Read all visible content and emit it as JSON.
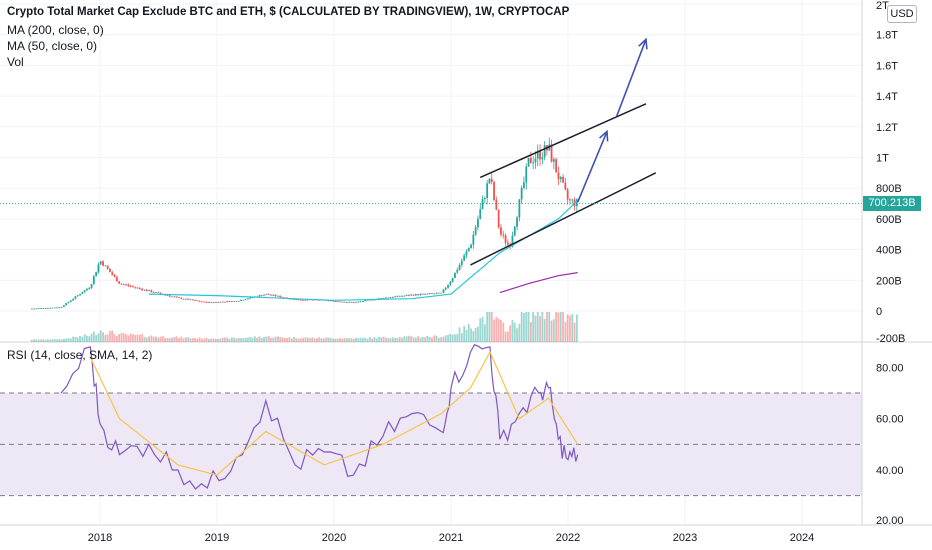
{
  "header": {
    "title": "Crypto Total Market Cap Exclude BTC and ETH, $ (CALCULATED BY TRADINGVIEW), 1W, CRYPTOCAP",
    "ma200": "MA (200, close, 0)",
    "ma50": "MA (50, close, 0)",
    "vol": "Vol"
  },
  "currency_badge": "USD",
  "price_tag": "700.213B",
  "rsi_label": "RSI (14, close, SMA, 14, 2)",
  "colors": {
    "up": "#26a69a",
    "down": "#ef5350",
    "ma50": "#26c6da",
    "ma200": "#9c27b0",
    "rsi": "#7e57c2",
    "rsi_ma": "#f7c548",
    "drawings": "#1c1f2e",
    "arrows": "#3f51b5",
    "rsi_band": "#ede7f6",
    "price_tag": "#26a69a"
  },
  "chart_data": [
    {
      "type": "line",
      "subtype": "candlestick",
      "title": "Crypto Total Market Cap Exclude BTC and ETH, $ (CALCULATED BY TRADINGVIEW), 1W, CRYPTOCAP",
      "y_unit": "USD",
      "y_ticks": [
        "2T",
        "1.8T",
        "1.6T",
        "1.4T",
        "1.2T",
        "1T",
        "800B",
        "600B",
        "400B",
        "200B",
        "0",
        "-200B"
      ],
      "ylim": [
        -200,
        2000
      ],
      "x_ticks": [
        "2018",
        "2019",
        "2020",
        "2021",
        "2022",
        "2023",
        "2024"
      ],
      "last_value": "700.213B",
      "series": [
        {
          "name": "CRYPTOCAP",
          "x": [
            "2017-06",
            "2017-09",
            "2017-12",
            "2018-01",
            "2018-03",
            "2018-06",
            "2018-09",
            "2018-12",
            "2019-03",
            "2019-06",
            "2019-09",
            "2019-12",
            "2020-03",
            "2020-06",
            "2020-09",
            "2020-12",
            "2021-01",
            "2021-03",
            "2021-05",
            "2021-06",
            "2021-07",
            "2021-09",
            "2021-11",
            "2021-12",
            "2022-01",
            "2022-02"
          ],
          "values": [
            15,
            25,
            160,
            330,
            180,
            130,
            85,
            55,
            65,
            110,
            75,
            70,
            55,
            85,
            105,
            115,
            200,
            430,
            880,
            510,
            420,
            980,
            1060,
            880,
            720,
            700
          ]
        },
        {
          "name": "MA (50, close, 0)",
          "x": [
            "2018-06",
            "2019-01",
            "2020-01",
            "2020-09",
            "2021-01",
            "2021-06",
            "2021-12",
            "2022-02"
          ],
          "values": [
            110,
            100,
            70,
            80,
            110,
            380,
            600,
            720
          ]
        },
        {
          "name": "MA (200, close, 0)",
          "x": [
            "2021-06",
            "2021-09",
            "2021-12",
            "2022-02"
          ],
          "values": [
            120,
            180,
            230,
            250
          ]
        }
      ]
    },
    {
      "type": "line",
      "title": "RSI (14, close, SMA, 14, 2)",
      "y_ticks": [
        "80.00",
        "60.00",
        "40.00",
        "20.00"
      ],
      "ylim": [
        20,
        90
      ],
      "band": [
        30,
        70
      ],
      "midline": 50,
      "series": [
        {
          "name": "RSI",
          "x": [
            "2017-09",
            "2017-12",
            "2018-01",
            "2018-03",
            "2018-06",
            "2018-09",
            "2018-12",
            "2019-03",
            "2019-06",
            "2019-09",
            "2019-12",
            "2020-03",
            "2020-06",
            "2020-09",
            "2020-12",
            "2021-01",
            "2021-03",
            "2021-05",
            "2021-06",
            "2021-08",
            "2021-10",
            "2021-11",
            "2021-12",
            "2022-01",
            "2022-02"
          ],
          "values": [
            70,
            88,
            58,
            46,
            50,
            40,
            33,
            45,
            67,
            42,
            47,
            38,
            53,
            62,
            55,
            72,
            86,
            88,
            52,
            62,
            70,
            72,
            52,
            44,
            46
          ]
        },
        {
          "name": "RSI-based MA",
          "x": [
            "2017-12",
            "2018-03",
            "2018-09",
            "2019-01",
            "2019-06",
            "2019-12",
            "2020-06",
            "2020-12",
            "2021-03",
            "2021-05",
            "2021-08",
            "2021-11",
            "2022-02"
          ],
          "values": [
            84,
            60,
            42,
            38,
            55,
            42,
            50,
            62,
            72,
            86,
            60,
            68,
            50
          ]
        }
      ]
    }
  ]
}
